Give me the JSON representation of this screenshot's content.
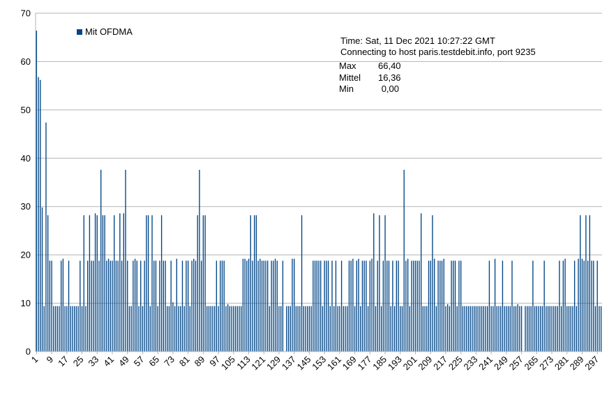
{
  "chart_data": {
    "type": "bar",
    "legend": {
      "label": "Mit OFDMA",
      "color": "#004586"
    },
    "ylim": [
      0,
      70
    ],
    "yticks": [
      0,
      10,
      20,
      30,
      40,
      50,
      60,
      70
    ],
    "xlabel": "",
    "ylabel": "",
    "grid": true,
    "info_lines": [
      "Time: Sat, 11 Dec 2021 10:27:22 GMT",
      "Connecting to host paris.testdebit.info, port 9235"
    ],
    "stats": [
      {
        "label": "Max",
        "value": "66,40"
      },
      {
        "label": "Mittel",
        "value": "16,36"
      },
      {
        "label": "Min",
        "value": "0,00"
      }
    ],
    "x_tick_labels": [
      "1",
      "9",
      "17",
      "25",
      "33",
      "41",
      "49",
      "57",
      "65",
      "73",
      "81",
      "89",
      "97",
      "105",
      "113",
      "121",
      "129",
      "137",
      "145",
      "153",
      "161",
      "169",
      "177",
      "185",
      "193",
      "201",
      "209",
      "217",
      "225",
      "233",
      "241",
      "249",
      "257",
      "265",
      "273",
      "281",
      "289",
      "297"
    ],
    "x_tick_step": 8,
    "values": [
      66.4,
      56.8,
      56.2,
      29.8,
      9.4,
      47.4,
      28.2,
      18.8,
      18.8,
      9.4,
      9.4,
      9.4,
      9.4,
      18.8,
      19.2,
      9.4,
      9.4,
      18.8,
      9.4,
      9.4,
      9.4,
      9.4,
      9.4,
      18.8,
      9.4,
      28.2,
      9.4,
      18.8,
      28.2,
      18.8,
      18.8,
      28.6,
      28.2,
      18.8,
      37.6,
      28.2,
      28.2,
      18.8,
      19.2,
      18.8,
      18.8,
      28.2,
      18.8,
      18.8,
      28.6,
      18.8,
      28.6,
      37.6,
      18.8,
      9.4,
      9.4,
      18.8,
      19.2,
      18.8,
      9.4,
      18.8,
      9.4,
      18.8,
      28.2,
      28.2,
      9.4,
      28.2,
      18.8,
      18.8,
      9.4,
      18.8,
      28.2,
      18.8,
      18.8,
      9.4,
      9.4,
      18.8,
      10.2,
      9.4,
      19.2,
      9.4,
      9.4,
      18.8,
      9.4,
      18.8,
      18.8,
      9.4,
      18.8,
      19.2,
      18.8,
      28.2,
      37.6,
      18.8,
      28.2,
      28.2,
      9.4,
      9.4,
      9.4,
      9.4,
      9.4,
      18.8,
      9.4,
      18.8,
      18.8,
      18.8,
      9.4,
      9.8,
      9.4,
      9.4,
      9.4,
      9.4,
      9.4,
      9.4,
      9.4,
      19.2,
      19.2,
      18.8,
      19.2,
      28.2,
      18.8,
      28.2,
      28.2,
      18.8,
      19.2,
      18.8,
      18.8,
      18.8,
      18.8,
      9.4,
      18.8,
      18.8,
      19.2,
      18.8,
      9.4,
      9.4,
      18.8,
      0,
      9.4,
      9.4,
      9.4,
      19.2,
      19.2,
      9.4,
      9.4,
      9.4,
      28.2,
      9.4,
      9.4,
      9.4,
      9.4,
      9.4,
      18.8,
      18.8,
      18.8,
      18.8,
      18.8,
      9.4,
      18.8,
      18.8,
      18.8,
      9.4,
      18.8,
      9.4,
      18.8,
      9.4,
      9.4,
      18.8,
      9.4,
      9.4,
      9.4,
      18.8,
      18.8,
      19.2,
      9.4,
      18.8,
      19.2,
      9.4,
      18.8,
      18.8,
      18.8,
      9.4,
      18.8,
      19.2,
      28.6,
      9.4,
      18.8,
      28.2,
      9.4,
      18.8,
      28.2,
      18.8,
      18.8,
      9.4,
      18.8,
      9.4,
      18.8,
      18.8,
      9.4,
      9.4,
      37.6,
      18.8,
      19.2,
      9.4,
      18.8,
      18.8,
      18.8,
      18.8,
      18.8,
      28.6,
      9.4,
      9.4,
      9.4,
      18.8,
      18.8,
      28.2,
      19.2,
      9.4,
      18.8,
      18.8,
      18.8,
      19.2,
      9.4,
      9.8,
      9.4,
      18.8,
      18.8,
      18.8,
      9.4,
      18.8,
      18.8,
      9.4,
      9.4,
      9.4,
      9.4,
      9.4,
      9.4,
      9.4,
      9.4,
      9.4,
      9.4,
      9.4,
      9.4,
      9.4,
      9.4,
      18.8,
      9.4,
      9.4,
      19.2,
      9.4,
      9.4,
      9.4,
      18.8,
      9.4,
      9.4,
      9.4,
      9.4,
      18.8,
      9.4,
      9.4,
      9.8,
      9.4,
      9.4,
      0,
      9.4,
      9.4,
      9.4,
      9.4,
      18.8,
      9.4,
      9.4,
      9.4,
      9.4,
      9.4,
      18.8,
      9.4,
      9.4,
      9.4,
      9.4,
      9.4,
      9.4,
      9.4,
      18.8,
      9.4,
      18.8,
      19.2,
      9.4,
      9.4,
      9.4,
      9.4,
      18.8,
      9.4,
      19.2,
      28.2,
      19.2,
      18.8,
      28.2,
      18.8,
      28.2,
      18.8,
      18.8,
      9.4,
      18.8,
      9.4,
      9.4
    ]
  }
}
